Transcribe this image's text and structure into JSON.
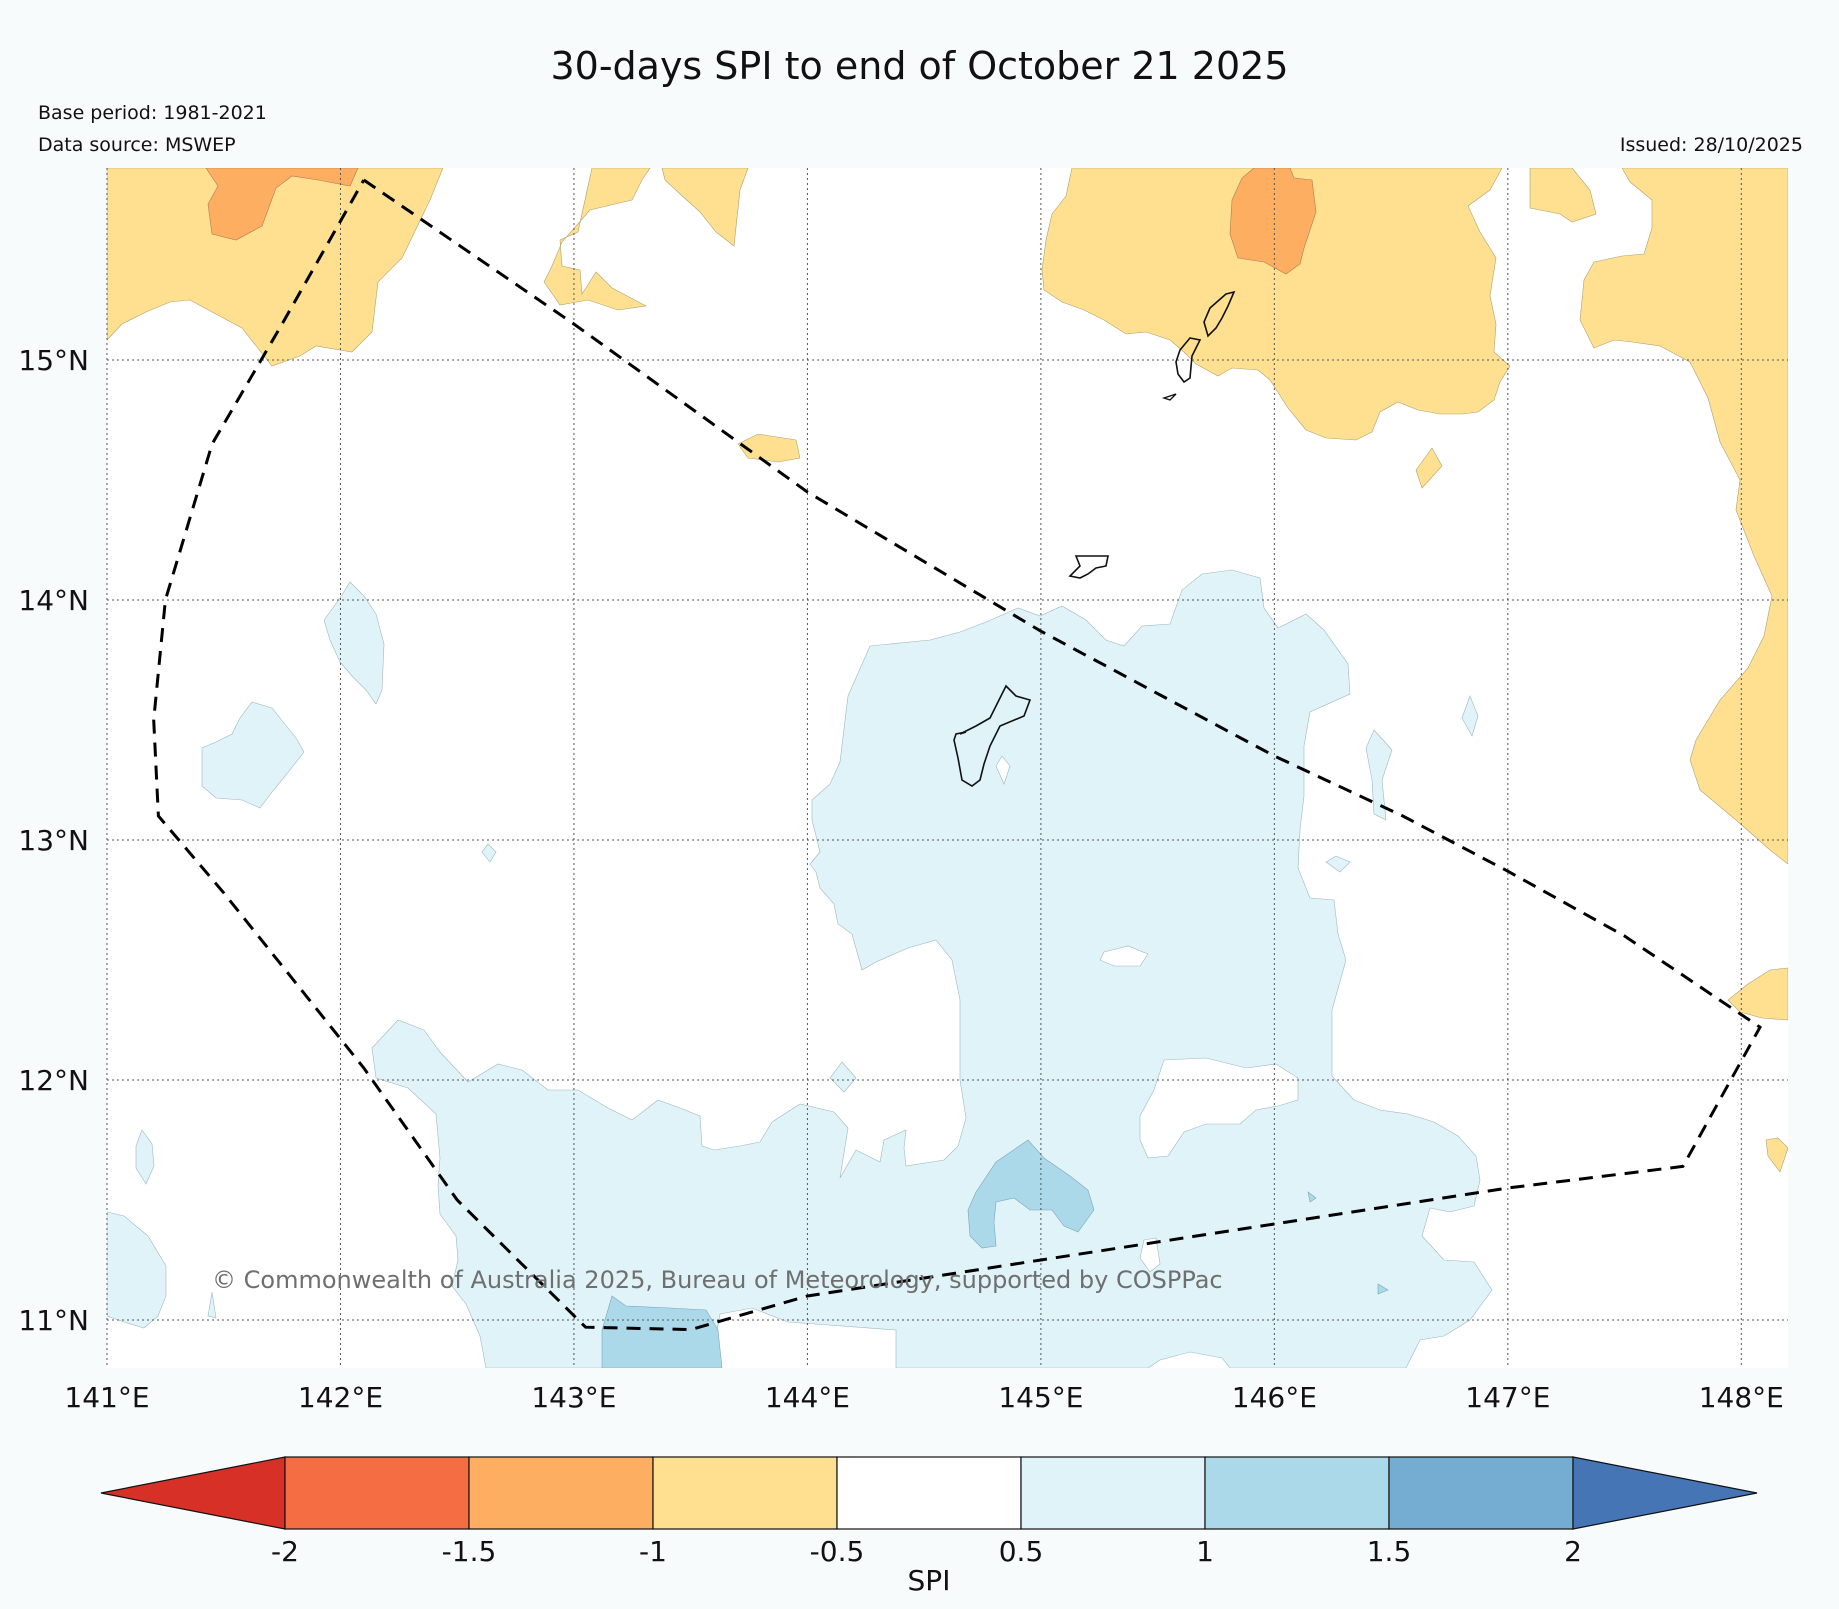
{
  "header": {
    "title": "30-days SPI to end of October 21 2025",
    "base_period": "Base period: 1981-2021",
    "data_source": "Data source: MSWEP",
    "issued": "Issued: 28/10/2025"
  },
  "map": {
    "watermark": "© Commonwealth of Australia 2025, Bureau of Meteorology, supported by COSPPac",
    "lon_range": [
      141.0,
      148.2
    ],
    "lat_range": [
      10.8,
      15.8
    ],
    "lon_ticks": [
      {
        "value": 141,
        "label": "141°E"
      },
      {
        "value": 142,
        "label": "142°E"
      },
      {
        "value": 143,
        "label": "143°E"
      },
      {
        "value": 144,
        "label": "144°E"
      },
      {
        "value": 145,
        "label": "145°E"
      },
      {
        "value": 146,
        "label": "146°E"
      },
      {
        "value": 147,
        "label": "147°E"
      },
      {
        "value": 148,
        "label": "148°E"
      }
    ],
    "lat_ticks": [
      {
        "value": 15,
        "label": "15°N"
      },
      {
        "value": 14,
        "label": "14°N"
      },
      {
        "value": 13,
        "label": "13°N"
      },
      {
        "value": 12,
        "label": "12°N"
      },
      {
        "value": 11,
        "label": "11°N"
      }
    ],
    "boundary_lonlat": [
      [
        142.1,
        15.75
      ],
      [
        143.0,
        15.15
      ],
      [
        144.0,
        14.45
      ],
      [
        145.0,
        13.87
      ],
      [
        146.0,
        13.35
      ],
      [
        146.55,
        13.1
      ],
      [
        147.0,
        12.87
      ],
      [
        147.5,
        12.6
      ],
      [
        148.08,
        12.22
      ],
      [
        147.75,
        11.64
      ],
      [
        147.0,
        11.55
      ],
      [
        146.0,
        11.4
      ],
      [
        145.0,
        11.25
      ],
      [
        144.0,
        11.1
      ],
      [
        143.5,
        10.96
      ],
      [
        143.05,
        10.97
      ],
      [
        142.5,
        11.5
      ],
      [
        142.1,
        12.05
      ],
      [
        141.5,
        12.78
      ],
      [
        141.22,
        13.1
      ],
      [
        141.2,
        13.5
      ],
      [
        141.25,
        14.0
      ],
      [
        141.45,
        14.65
      ],
      [
        141.75,
        15.15
      ],
      [
        142.1,
        15.75
      ]
    ],
    "colors": {
      "page_bg": "#f7fbfc",
      "dry_light": "#fee090",
      "dry_mid": "#fdae61",
      "wet_light": "#e0f3f8",
      "wet_mid": "#abd9e9"
    }
  },
  "colorbar": {
    "label": "SPI",
    "ticks": [
      "-2",
      "-1.5",
      "-1",
      "-0.5",
      "0.5",
      "1",
      "1.5",
      "2"
    ],
    "colors": [
      "#d73027",
      "#f46d43",
      "#fdae61",
      "#fee090",
      "#ffffff",
      "#e0f3f8",
      "#abd9e9",
      "#74add1",
      "#4575b4"
    ]
  }
}
